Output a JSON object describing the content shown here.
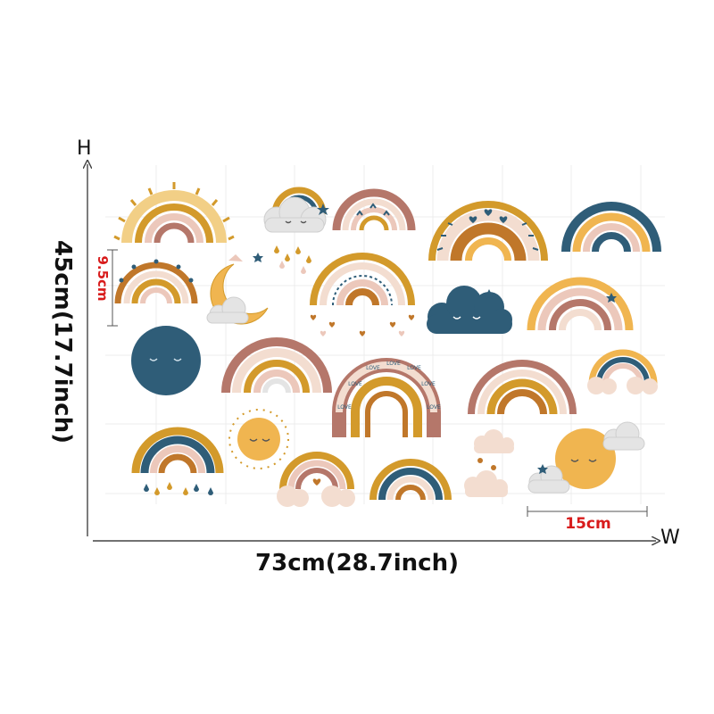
{
  "dimensions": {
    "height_axis_letter": "H",
    "width_axis_letter": "W",
    "total_width": "73cm(28.7inch)",
    "total_height": "45cm(17.7inch)",
    "single_item_height": "9.5cm",
    "single_item_width": "15cm"
  },
  "colors": {
    "mustard": "#d39a2b",
    "teal": "#2f5d78",
    "blush": "#ecc8bb",
    "terracotta": "#b5776a",
    "rust": "#c0772a",
    "gold": "#f0b550",
    "cloud": "#e4e4e4",
    "measure_red": "#d81b1b"
  },
  "banner_words": [
    "LOVE",
    "LOVE",
    "LOVE",
    "LOVE",
    "LOVE",
    "LOVE",
    "LOVE"
  ]
}
